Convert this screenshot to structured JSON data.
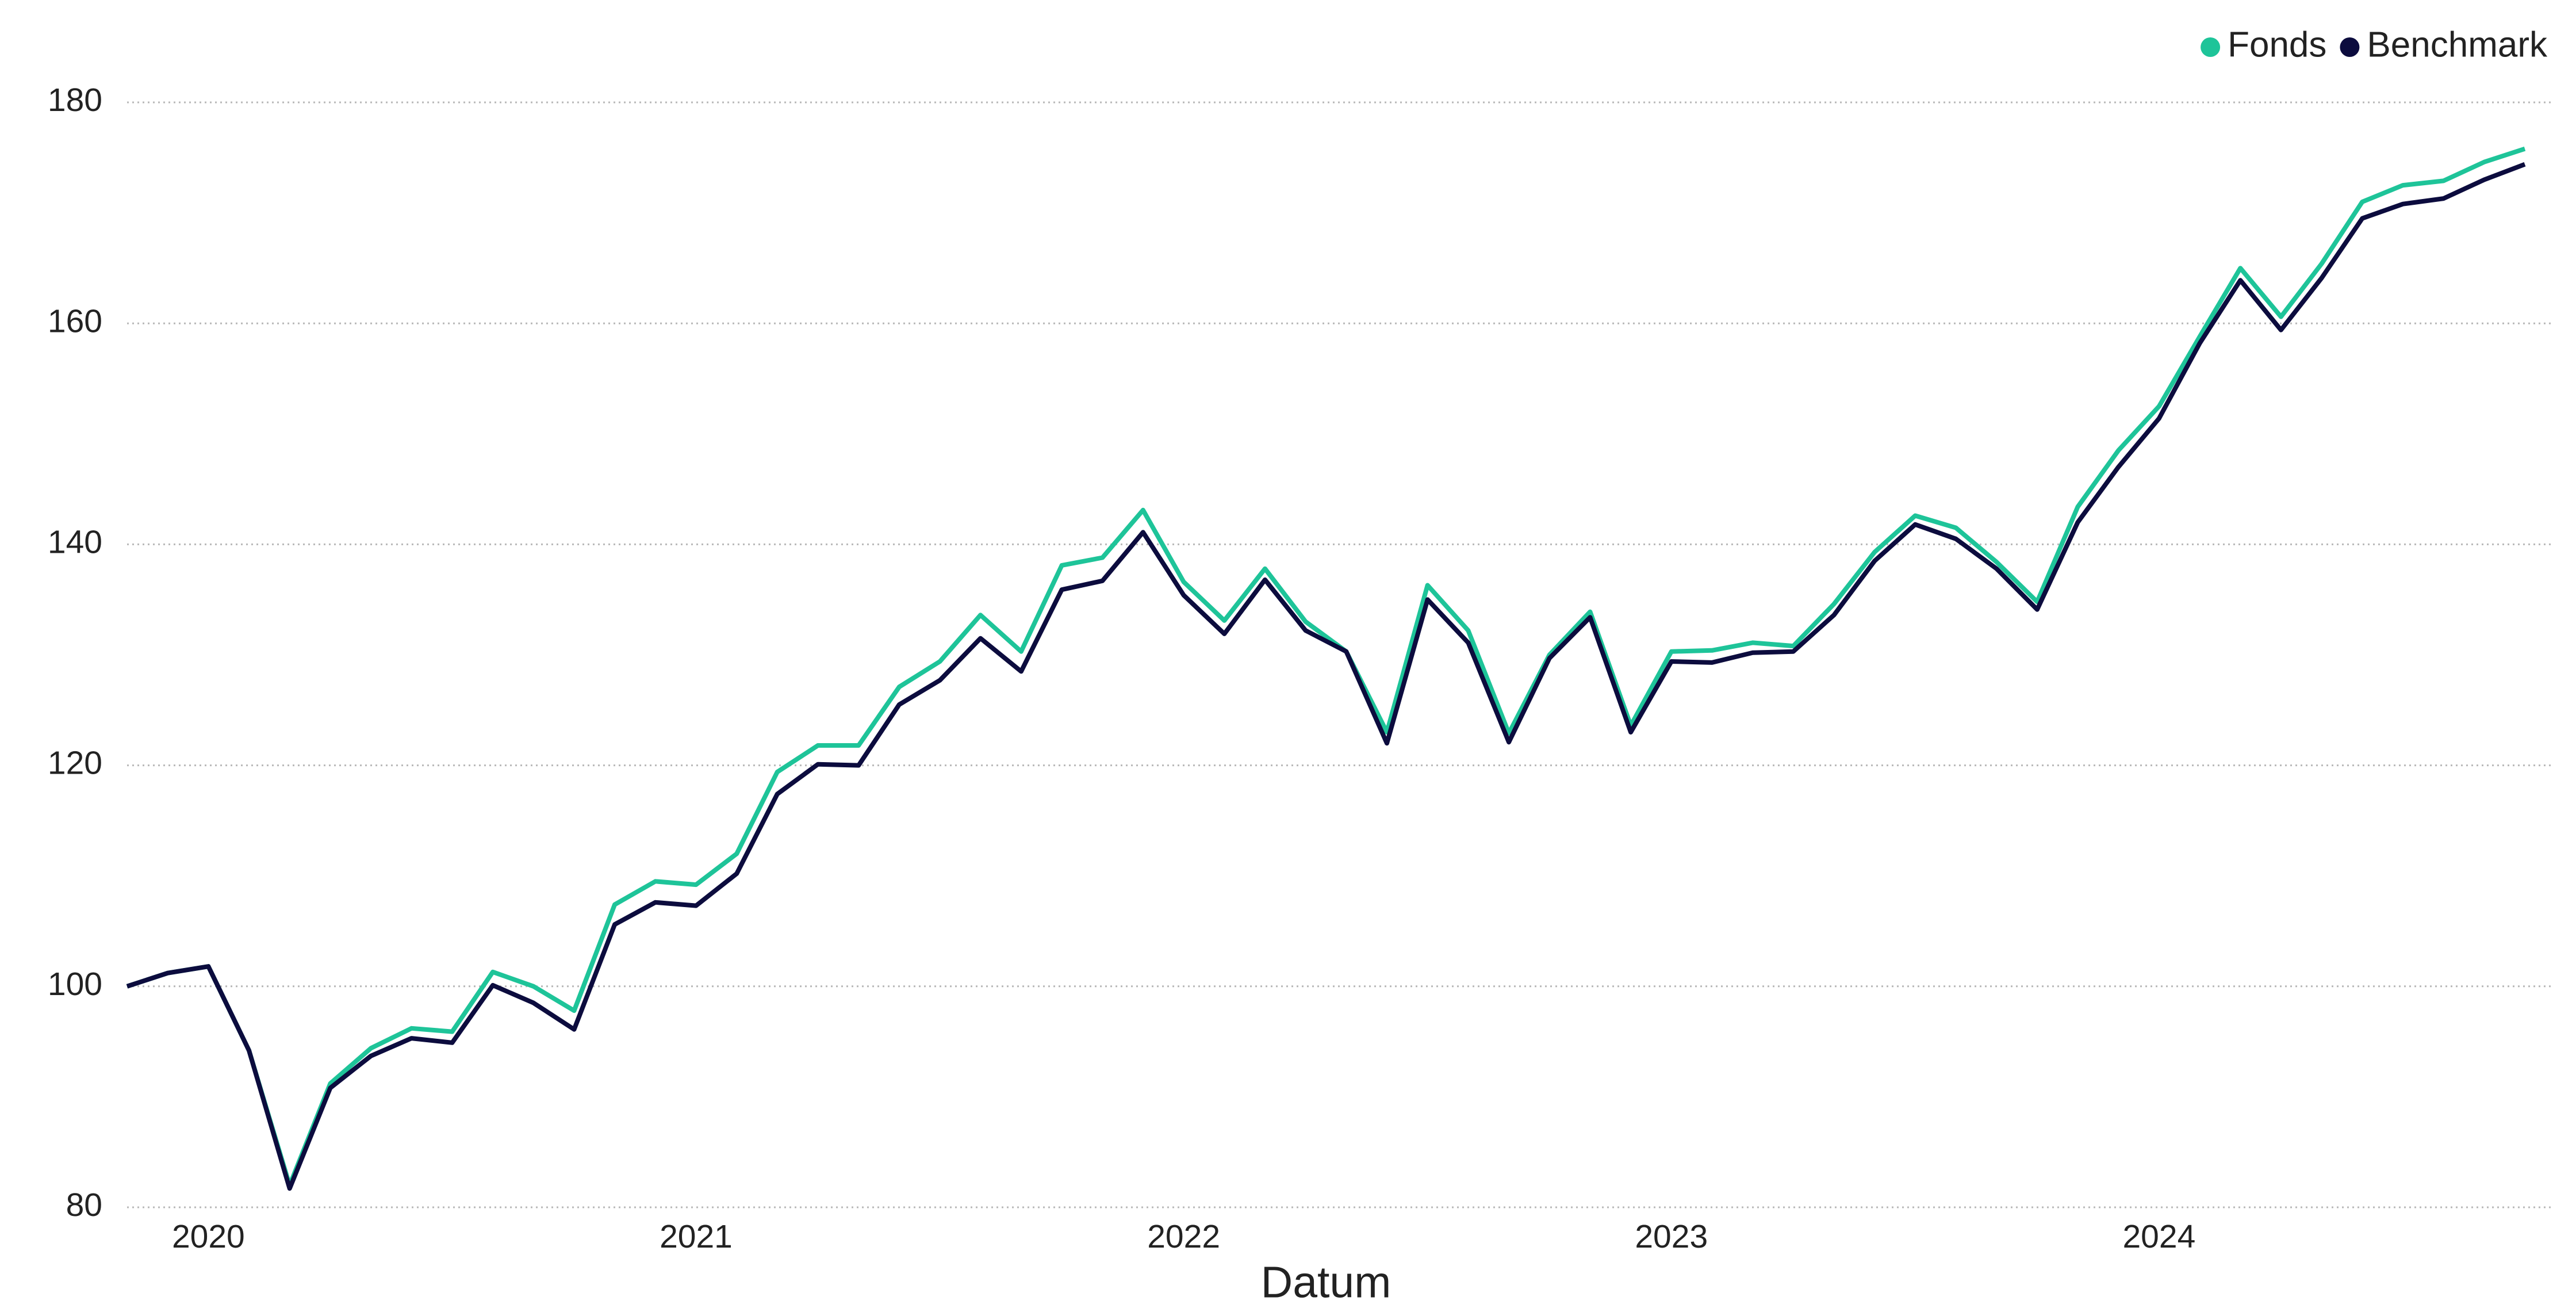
{
  "chart_data": {
    "type": "line",
    "x_label": "Datum",
    "categories": [
      null,
      null,
      "2020",
      null,
      null,
      null,
      null,
      null,
      null,
      null,
      null,
      null,
      null,
      null,
      "2021",
      null,
      null,
      null,
      null,
      null,
      null,
      null,
      null,
      null,
      null,
      null,
      "2022",
      null,
      null,
      null,
      null,
      null,
      null,
      null,
      null,
      null,
      null,
      null,
      "2023",
      null,
      null,
      null,
      null,
      null,
      null,
      null,
      null,
      null,
      null,
      null,
      "2024",
      null,
      null,
      null,
      null,
      null,
      null,
      null,
      null,
      null
    ],
    "series": [
      {
        "name": "Fonds",
        "color": "#1ec499",
        "values": [
          100,
          101.2,
          101.8,
          94.2,
          82,
          91.2,
          94.4,
          96.2,
          95.9,
          101.3,
          100.0,
          97.8,
          107.4,
          109.5,
          109.2,
          112.0,
          119.4,
          121.8,
          121.8,
          127.1,
          129.4,
          133.6,
          130.3,
          138.1,
          138.8,
          143.1,
          136.6,
          133.1,
          137.8,
          133.0,
          130.3,
          123.0,
          136.3,
          132.2,
          122.9,
          130.0,
          133.9,
          123.6,
          130.3,
          130.4,
          131.1,
          130.8,
          134.6,
          139.3,
          142.6,
          141.5,
          138.4,
          134.8,
          143.4,
          148.5,
          152.5,
          158.8,
          165.0,
          160.6,
          165.4,
          171.0,
          172.5,
          172.9,
          174.6,
          175.8
        ]
      },
      {
        "name": "Benchmark",
        "color": "#0c0c3e",
        "values": [
          100,
          101.2,
          101.8,
          94.2,
          81.7,
          90.8,
          93.7,
          95.3,
          94.9,
          100.1,
          98.5,
          96.1,
          105.6,
          107.6,
          107.3,
          110.2,
          117.4,
          120.1,
          120.0,
          125.5,
          127.7,
          131.5,
          128.5,
          135.9,
          136.7,
          141.1,
          135.4,
          131.9,
          136.8,
          132.2,
          130.3,
          122.0,
          135.0,
          131.1,
          122.1,
          129.7,
          133.4,
          123.0,
          129.4,
          129.3,
          130.2,
          130.3,
          133.6,
          138.5,
          141.8,
          140.5,
          137.8,
          134.1,
          142.0,
          147.0,
          151.4,
          158.2,
          163.9,
          159.4,
          164.1,
          169.5,
          170.8,
          171.3,
          173.0,
          174.4
        ]
      }
    ],
    "ylim": [
      80,
      180
    ],
    "yticks": [
      80,
      100,
      120,
      140,
      160,
      180
    ],
    "grid": true,
    "legend": "top right"
  }
}
